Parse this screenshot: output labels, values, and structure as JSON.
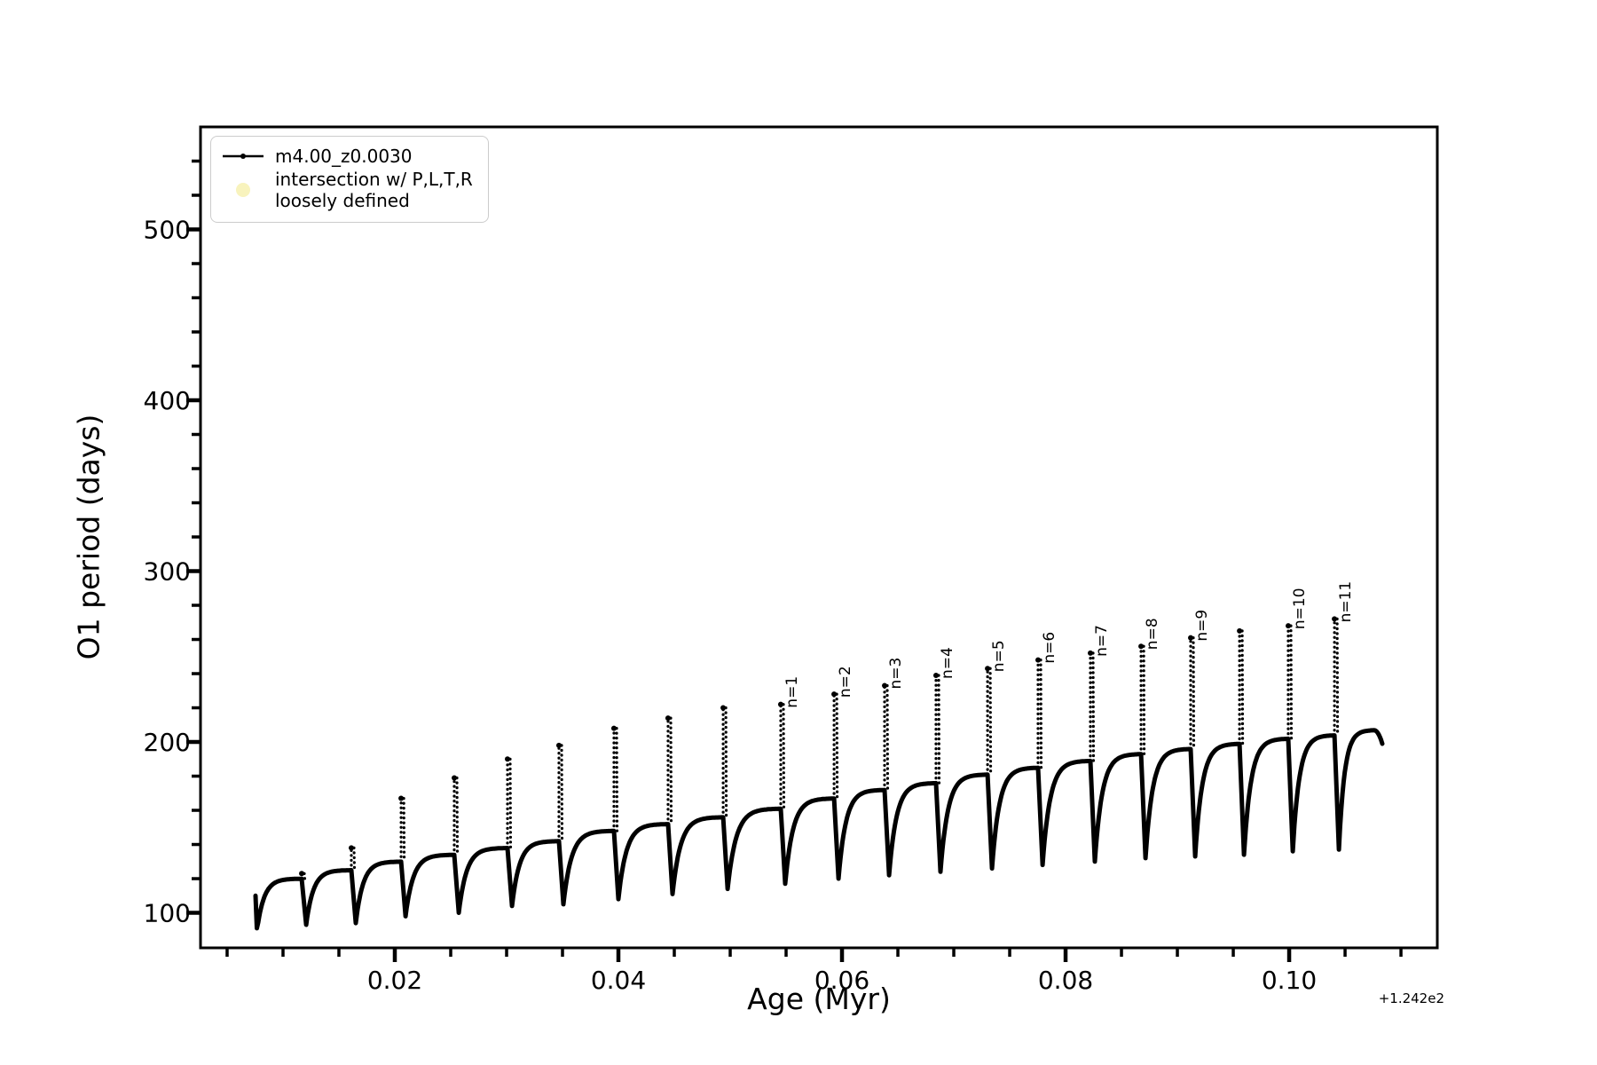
{
  "figure": {
    "background": "#ffffff"
  },
  "chart_data": {
    "type": "line",
    "title": "",
    "xlabel": "Age (Myr)",
    "ylabel": "O1 period (days)",
    "x_offset_text": "+1.242e2",
    "x_offset_value": 124.2,
    "xlim": [
      0.00262,
      0.11325
    ],
    "ylim": [
      79.5,
      560
    ],
    "grid": false,
    "xticks": {
      "values": [
        0.02,
        0.04,
        0.06,
        0.08,
        0.1
      ],
      "labels": [
        "0.02",
        "0.04",
        "0.06",
        "0.08",
        "0.10"
      ],
      "minor_step": 0.005
    },
    "yticks": {
      "values": [
        100,
        200,
        300,
        400,
        500
      ],
      "labels": [
        "100",
        "200",
        "300",
        "400",
        "500"
      ],
      "minor_step": 20
    },
    "legend": [
      {
        "label": "m4.00_z0.0030",
        "marker": "line-dot",
        "color": "#000000"
      },
      {
        "label": "intersection w/ P,L,T,R\nloosely defined",
        "marker": "filled-circle",
        "color": "#f8f3bd"
      }
    ],
    "line_color": "#000000",
    "series_name": "m4.00_z0.0030",
    "start": {
      "x": 0.00754,
      "top": 110,
      "bottom": 91
    },
    "cycles": [
      {
        "spike": 0.01167,
        "plateau": 120,
        "peak": 123,
        "trough_after": 93,
        "label": ""
      },
      {
        "spike": 0.01611,
        "plateau": 125,
        "peak": 138,
        "trough_after": 94,
        "label": ""
      },
      {
        "spike": 0.02056,
        "plateau": 130,
        "peak": 167,
        "trough_after": 98,
        "label": ""
      },
      {
        "spike": 0.02532,
        "plateau": 134,
        "peak": 179,
        "trough_after": 100,
        "label": ""
      },
      {
        "spike": 0.03008,
        "plateau": 138,
        "peak": 190,
        "trough_after": 104,
        "label": ""
      },
      {
        "spike": 0.03468,
        "plateau": 142,
        "peak": 198,
        "trough_after": 105,
        "label": ""
      },
      {
        "spike": 0.0396,
        "plateau": 148,
        "peak": 208,
        "trough_after": 108,
        "label": ""
      },
      {
        "spike": 0.04444,
        "plateau": 152,
        "peak": 214,
        "trough_after": 111,
        "label": ""
      },
      {
        "spike": 0.04937,
        "plateau": 156,
        "peak": 220,
        "trough_after": 114,
        "label": ""
      },
      {
        "spike": 0.05452,
        "plateau": 161,
        "peak": 222,
        "trough_after": 117,
        "label": "n=1"
      },
      {
        "spike": 0.05929,
        "plateau": 167,
        "peak": 228,
        "trough_after": 120,
        "label": "n=2"
      },
      {
        "spike": 0.06381,
        "plateau": 172,
        "peak": 233,
        "trough_after": 122,
        "label": "n=3"
      },
      {
        "spike": 0.06841,
        "plateau": 176,
        "peak": 239,
        "trough_after": 124,
        "label": "n=4"
      },
      {
        "spike": 0.07302,
        "plateau": 181,
        "peak": 243,
        "trough_after": 126,
        "label": "n=5"
      },
      {
        "spike": 0.07754,
        "plateau": 185,
        "peak": 248,
        "trough_after": 128,
        "label": "n=6"
      },
      {
        "spike": 0.08222,
        "plateau": 189,
        "peak": 252,
        "trough_after": 130,
        "label": "n=7"
      },
      {
        "spike": 0.08675,
        "plateau": 193,
        "peak": 256,
        "trough_after": 132,
        "label": "n=8"
      },
      {
        "spike": 0.09119,
        "plateau": 196,
        "peak": 261,
        "trough_after": 133,
        "label": "n=9"
      },
      {
        "spike": 0.09556,
        "plateau": 199,
        "peak": 265,
        "trough_after": 134,
        "label": ""
      },
      {
        "spike": 0.09992,
        "plateau": 202,
        "peak": 268,
        "trough_after": 136,
        "label": "n=10"
      },
      {
        "spike": 0.10405,
        "plateau": 204,
        "peak": 272,
        "trough_after": 137,
        "label": "n=11"
      }
    ],
    "tail": {
      "plateau": 207,
      "hook_start_x": 0.1076,
      "end_x": 0.10833,
      "end_y": 199
    }
  }
}
